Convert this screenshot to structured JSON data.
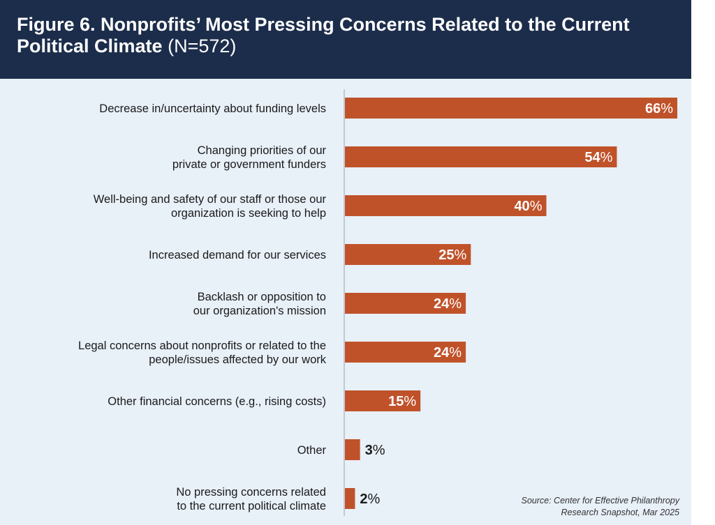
{
  "figure": {
    "title_main": "Figure 6. Nonprofits’ Most Pressing Concerns Related to the Current Political Climate",
    "title_n": "(N=572)"
  },
  "source": {
    "line1": "Source:  Center for Effective Philanthropy",
    "line2": "Research Snapshot, Mar 2025"
  },
  "colors": {
    "bar": "#c0522a",
    "header_bg": "#1c2d4b",
    "panel_bg": "#e8f0f8",
    "label_inside": "#ffffff",
    "label_outside": "#1a1a1a"
  },
  "chart_data": {
    "type": "bar",
    "orientation": "horizontal",
    "categories": [
      [
        "Decrease in/uncertainty about funding levels"
      ],
      [
        "Changing priorities of our",
        "private or government funders"
      ],
      [
        "Well-being and safety of our staff or those our",
        "organization is seeking to help"
      ],
      [
        "Increased demand for our services"
      ],
      [
        "Backlash or opposition to",
        "our organization's mission"
      ],
      [
        "Legal concerns about nonprofits or related to the",
        "people/issues affected by our work"
      ],
      [
        "Other financial concerns (e.g., rising costs)"
      ],
      [
        "Other"
      ],
      [
        "No pressing concerns related",
        "to the current political climate"
      ]
    ],
    "values": [
      66,
      54,
      40,
      25,
      24,
      24,
      15,
      3,
      2
    ],
    "value_suffix": "%",
    "xlim": [
      0,
      66
    ],
    "grid": false,
    "legend": "none"
  }
}
